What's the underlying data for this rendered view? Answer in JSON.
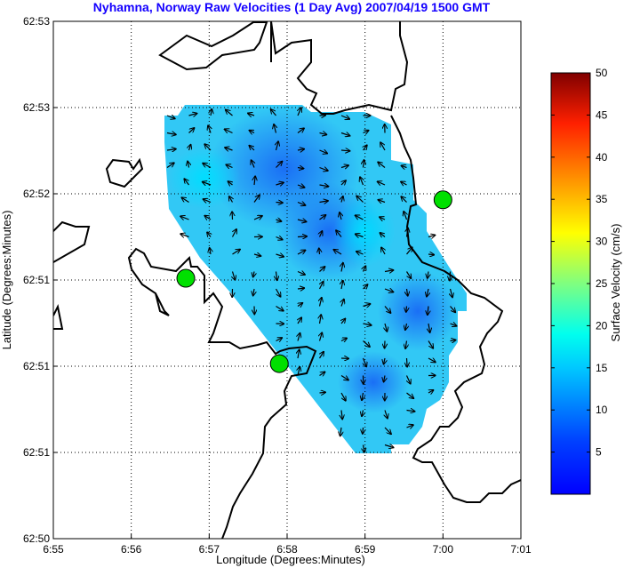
{
  "chart_data": {
    "type": "heatmap",
    "title": "Nyhamna, Norway Raw Velocities (1 Day Avg) 2007/04/19 1500 GMT",
    "xlabel": "Longitude (Degrees:Minutes)",
    "ylabel": "Latitude (Degrees:Minutes)",
    "x_ticks": [
      "6:55",
      "6:56",
      "6:57",
      "6:58",
      "6:59",
      "7:00",
      "7:01"
    ],
    "y_ticks": [
      "62:53",
      "62:53",
      "62:52",
      "62:51",
      "62:51",
      "62:51",
      "62:50"
    ],
    "grid": true,
    "colorbar": {
      "label": "Surface Velocity (cm/s)",
      "ticks": [
        "5",
        "10",
        "15",
        "20",
        "25",
        "30",
        "35",
        "40",
        "45",
        "50"
      ],
      "range": [
        0,
        50
      ],
      "colormap": "jet"
    },
    "sites": [
      {
        "lon_min": 56.7,
        "lat_idx": 2.98
      },
      {
        "lon_min": 57.9,
        "lat_idx": 3.97
      },
      {
        "lon_min": 60.0,
        "lat_idx": 2.07
      }
    ],
    "site_color": "#00e000",
    "coast_color": "#000000"
  }
}
